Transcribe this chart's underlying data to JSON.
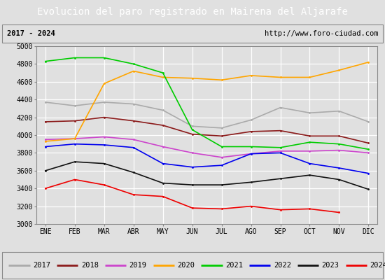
{
  "title": "Evolucion del paro registrado en Mairena del Aljarafe",
  "subtitle_left": "2017 - 2024",
  "subtitle_right": "http://www.foro-ciudad.com",
  "months": [
    "ENE",
    "FEB",
    "MAR",
    "ABR",
    "MAY",
    "JUN",
    "JUL",
    "AGO",
    "SEP",
    "OCT",
    "NOV",
    "DIC"
  ],
  "ylim": [
    3000,
    5000
  ],
  "yticks": [
    3000,
    3200,
    3400,
    3600,
    3800,
    4000,
    4200,
    4400,
    4600,
    4800,
    5000
  ],
  "series": {
    "2017": {
      "color": "#aaaaaa",
      "values": [
        4370,
        4330,
        4370,
        4350,
        4280,
        4100,
        4080,
        4170,
        4310,
        4250,
        4270,
        4150
      ]
    },
    "2018": {
      "color": "#8b1a1a",
      "values": [
        4150,
        4160,
        4200,
        4160,
        4110,
        4010,
        3990,
        4040,
        4050,
        3990,
        3990,
        3910
      ]
    },
    "2019": {
      "color": "#cc44cc",
      "values": [
        3950,
        3960,
        3980,
        3950,
        3870,
        3800,
        3750,
        3790,
        3820,
        3820,
        3830,
        3800
      ]
    },
    "2020": {
      "color": "#ffa500",
      "values": [
        3930,
        3960,
        4580,
        4720,
        4650,
        4640,
        4620,
        4670,
        4650,
        4650,
        4730,
        4820
      ]
    },
    "2021": {
      "color": "#00cc00",
      "values": [
        4830,
        4870,
        4870,
        4800,
        4700,
        4060,
        3870,
        3870,
        3860,
        3920,
        3900,
        3840
      ]
    },
    "2022": {
      "color": "#0000ee",
      "values": [
        3870,
        3900,
        3890,
        3860,
        3680,
        3640,
        3660,
        3790,
        3800,
        3680,
        3630,
        3570
      ]
    },
    "2023": {
      "color": "#111111",
      "values": [
        3600,
        3700,
        3680,
        3580,
        3460,
        3440,
        3440,
        3470,
        3510,
        3550,
        3500,
        3390
      ]
    },
    "2024": {
      "color": "#ee0000",
      "values": [
        3400,
        3500,
        3440,
        3330,
        3310,
        3180,
        3170,
        3200,
        3160,
        3170,
        3130,
        null
      ]
    }
  },
  "title_bg_color": "#3a7abf",
  "title_text_color": "#ffffff",
  "subtitle_bg_color": "#e0e0e0",
  "plot_bg_color": "#e0e0e0",
  "legend_bg_color": "#e0e0e0",
  "grid_color": "#ffffff",
  "title_fontsize": 10,
  "subtitle_fontsize": 7.5,
  "axis_fontsize": 7,
  "legend_fontsize": 7.5
}
